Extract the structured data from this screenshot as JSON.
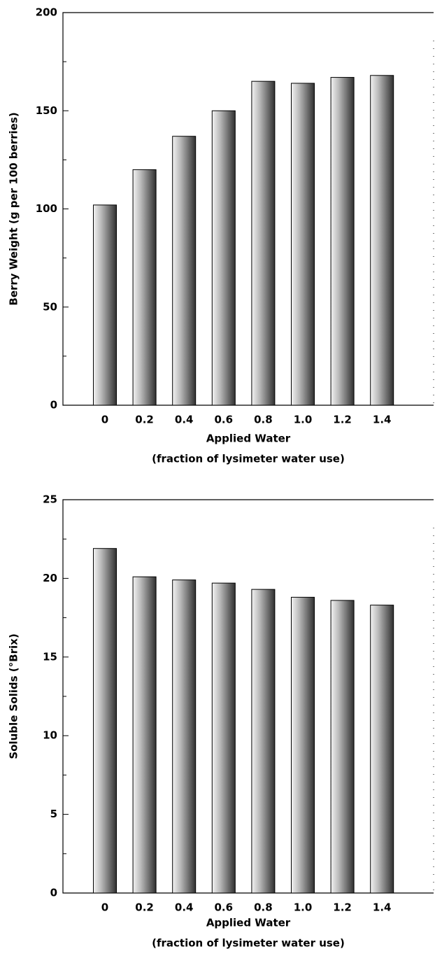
{
  "chart_data": [
    {
      "type": "bar",
      "ylabel": "Berry Weight (g per 100 berries)",
      "xlabel": "Applied Water",
      "xlabel_sub": "(fraction of lysimeter water use)",
      "categories": [
        "0",
        "0.2",
        "0.4",
        "0.6",
        "0.8",
        "1.0",
        "1.2",
        "1.4"
      ],
      "values": [
        102,
        120,
        137,
        150,
        165,
        164,
        167,
        168
      ],
      "ylim": [
        0,
        200
      ],
      "yticks": [
        0,
        50,
        100,
        150,
        200
      ]
    },
    {
      "type": "bar",
      "ylabel": "Soluble Solids (°Brix)",
      "xlabel": "Applied Water",
      "xlabel_sub": "(fraction of lysimeter water use)",
      "categories": [
        "0",
        "0.2",
        "0.4",
        "0.6",
        "0.8",
        "1.0",
        "1.2",
        "1.4"
      ],
      "values": [
        21.9,
        20.1,
        19.9,
        19.7,
        19.3,
        18.8,
        18.6,
        18.3
      ],
      "ylim": [
        0,
        25
      ],
      "yticks": [
        0,
        5,
        10,
        15,
        20,
        25
      ]
    }
  ]
}
